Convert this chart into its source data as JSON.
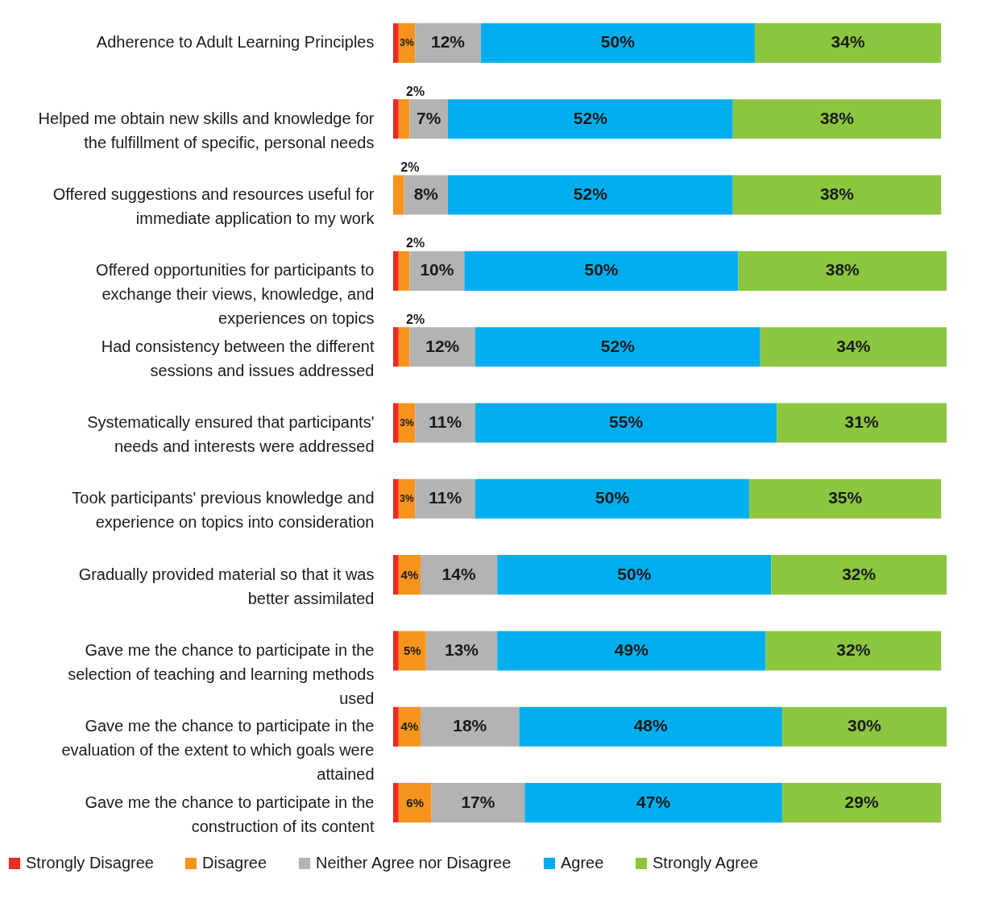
{
  "chart_data": {
    "type": "bar",
    "orientation": "horizontal",
    "stacked": true,
    "legend": "bottom",
    "categories": [
      "Adherence to Adult Learning Principles",
      "Helped me obtain new skills and knowledge for the fulfillment of specific, personal needs",
      "Offered suggestions and resources useful for immediate application to my work",
      "Offered opportunities for participants to exchange their views, knowledge, and experiences on topics",
      "Had consistency between the different sessions and issues addressed",
      "Systematically ensured that participants' needs and interests were addressed",
      "Took participants' previous knowledge and experience on topics into consideration",
      "Gradually provided material so that it was better assimilated",
      "Gave me the chance to participate in the selection of teaching and learning methods used",
      "Gave me the chance to participate in the evaluation of the extent to which goals were attained",
      "Gave me the chance to participate in the construction of its content"
    ],
    "series": [
      {
        "name": "Strongly Disagree",
        "color": "#ee2a24",
        "values": [
          1,
          1,
          0,
          1,
          1,
          1,
          1,
          1,
          1,
          1,
          1
        ],
        "value_labels": [
          null,
          null,
          null,
          null,
          null,
          null,
          null,
          null,
          null,
          null,
          null
        ]
      },
      {
        "name": "Disagree",
        "color": "#f7941d",
        "values": [
          3,
          2,
          2,
          2,
          2,
          3,
          3,
          4,
          5,
          4,
          6
        ],
        "value_labels": [
          "3%",
          "2%",
          "2%",
          "2%",
          "2%",
          "3%",
          "3%",
          "4%",
          "5%",
          "4%",
          "6%"
        ]
      },
      {
        "name": "Neither Agree nor Disagree",
        "color": "#b3b3b3",
        "values": [
          12,
          7,
          8,
          10,
          12,
          11,
          11,
          14,
          13,
          18,
          17
        ],
        "value_labels": [
          "12%",
          "7%",
          "8%",
          "10%",
          "12%",
          "11%",
          "11%",
          "14%",
          "13%",
          "18%",
          "17%"
        ]
      },
      {
        "name": "Agree",
        "color": "#00aeef",
        "values": [
          50,
          52,
          52,
          50,
          52,
          55,
          50,
          50,
          49,
          48,
          47
        ],
        "value_labels": [
          "50%",
          "52%",
          "52%",
          "50%",
          "52%",
          "55%",
          "50%",
          "50%",
          "49%",
          "48%",
          "47%"
        ]
      },
      {
        "name": "Strongly Agree",
        "color": "#8cc63f",
        "values": [
          34,
          38,
          38,
          38,
          34,
          31,
          35,
          32,
          32,
          30,
          29
        ],
        "value_labels": [
          "34%",
          "38%",
          "38%",
          "38%",
          "34%",
          "31%",
          "35%",
          "32%",
          "32%",
          "30%",
          "29%"
        ]
      }
    ]
  }
}
